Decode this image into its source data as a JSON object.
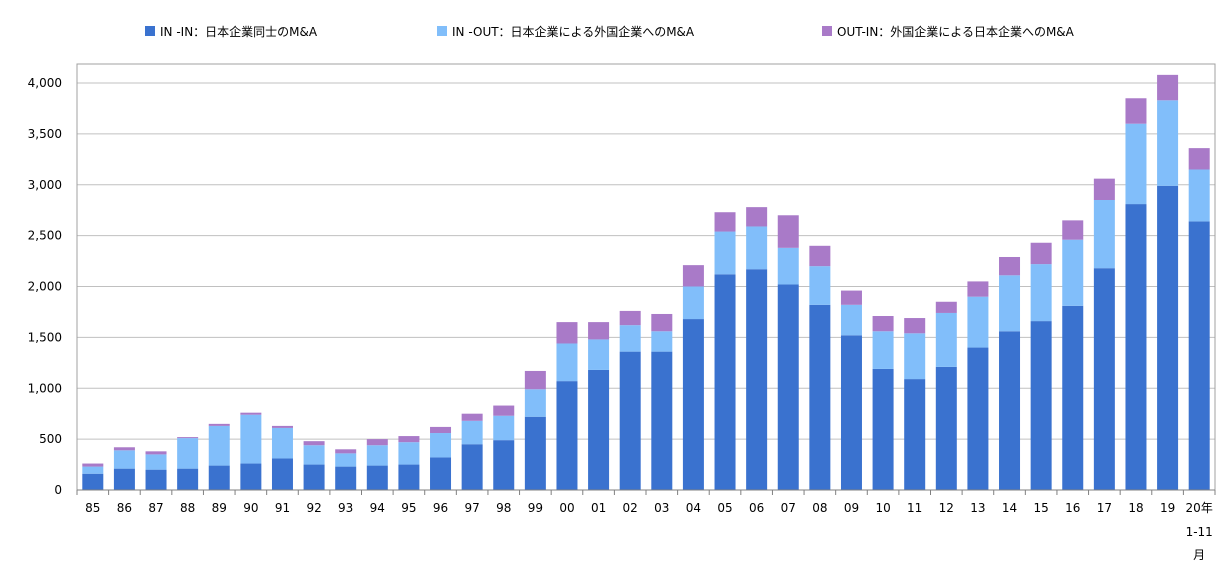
{
  "chart_data": {
    "type": "bar",
    "stacked": true,
    "categories": [
      "85",
      "86",
      "87",
      "88",
      "89",
      "90",
      "91",
      "92",
      "93",
      "94",
      "95",
      "96",
      "97",
      "98",
      "99",
      "00",
      "01",
      "02",
      "03",
      "04",
      "05",
      "06",
      "07",
      "08",
      "09",
      "10",
      "11",
      "12",
      "13",
      "14",
      "15",
      "16",
      "17",
      "18",
      "19",
      "20年"
    ],
    "last_category_sublabel": [
      "1-11",
      "月"
    ],
    "series": [
      {
        "name": "IN -IN：日本企業同士のM&A",
        "color": "#3a72cf",
        "values": [
          160,
          210,
          200,
          210,
          240,
          260,
          310,
          250,
          230,
          240,
          250,
          320,
          450,
          490,
          720,
          1070,
          1180,
          1360,
          1360,
          1680,
          2120,
          2170,
          2020,
          1820,
          1520,
          1190,
          1090,
          1210,
          1400,
          1560,
          1660,
          1810,
          2180,
          2810,
          2990,
          2640
        ]
      },
      {
        "name": "IN -OUT：日本企業による外国企業へのM&A",
        "color": "#81befa",
        "values": [
          70,
          180,
          150,
          300,
          390,
          480,
          300,
          190,
          130,
          200,
          220,
          240,
          230,
          240,
          270,
          370,
          300,
          260,
          200,
          320,
          420,
          420,
          360,
          380,
          300,
          370,
          450,
          530,
          500,
          550,
          560,
          650,
          670,
          790,
          840,
          510
        ]
      },
      {
        "name": "OUT-IN：外国企業による日本企業へのM&A",
        "color": "#a97ac8",
        "values": [
          30,
          30,
          30,
          10,
          20,
          20,
          20,
          40,
          40,
          60,
          60,
          60,
          70,
          100,
          180,
          210,
          170,
          140,
          170,
          210,
          190,
          190,
          320,
          200,
          140,
          150,
          150,
          110,
          150,
          180,
          210,
          190,
          210,
          250,
          250,
          210
        ]
      }
    ],
    "ylim": [
      0,
      4000
    ],
    "yticks": [
      "0",
      "500",
      "1,000",
      "1,500",
      "2,000",
      "2,500",
      "3,000",
      "3,500",
      "4,000"
    ],
    "ytick_values": [
      0,
      500,
      1000,
      1500,
      2000,
      2500,
      3000,
      3500,
      4000
    ],
    "grid": true,
    "legend_position": "top"
  }
}
